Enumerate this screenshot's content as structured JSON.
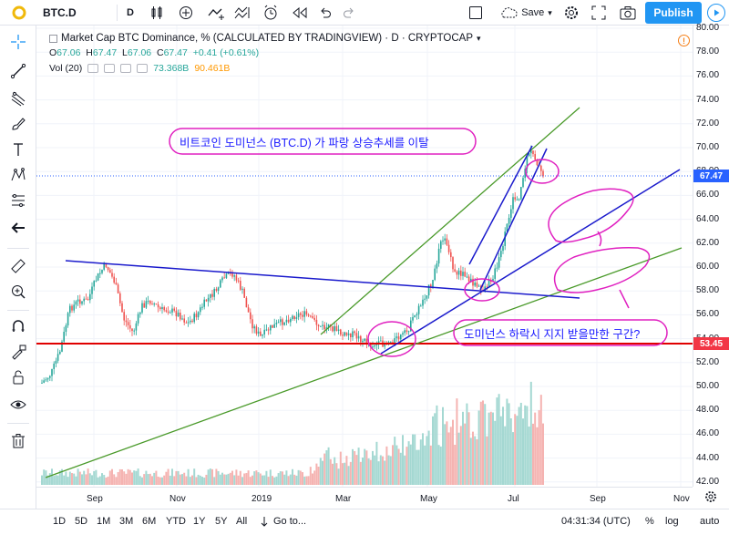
{
  "toolbar": {
    "symbol": "BTC.D",
    "interval": "D",
    "save_label": "Save",
    "publish_label": "Publish"
  },
  "legend": {
    "title": "Market Cap BTC Dominance, % (CALCULATED BY TRADINGVIEW) · D · CRYPTOCAP",
    "open_label": "O",
    "open": "67.06",
    "high_label": "H",
    "high": "67.47",
    "low_label": "L",
    "low": "67.06",
    "close_label": "C",
    "close": "67.47",
    "change": "+0.41 (+0.61%)",
    "vol_label": "Vol (20)",
    "vol_value": "73.368B",
    "vol_ma": "90.461B"
  },
  "annotations": {
    "top": "비트코인 도미넌스 (BTC.D) 가 파랑 상승추세를 이탈",
    "bottom": "도미넌스 하락시 지지 받을만한 구간?"
  },
  "price_axis": {
    "ticks": [
      "80.00",
      "78.00",
      "76.00",
      "74.00",
      "72.00",
      "70.00",
      "68.00",
      "66.00",
      "64.00",
      "62.00",
      "60.00",
      "58.00",
      "56.00",
      "54.00",
      "52.00",
      "50.00",
      "48.00",
      "46.00",
      "44.00",
      "42.00"
    ],
    "current_price": "67.47",
    "current_color": "#2962ff",
    "support_price": "53.45",
    "support_color": "#f23645"
  },
  "time_axis": {
    "ticks": [
      "Sep",
      "Nov",
      "2019",
      "Mar",
      "May",
      "Jul",
      "Sep",
      "Nov"
    ]
  },
  "bottom_bar": {
    "timeframes": [
      "1D",
      "5D",
      "1M",
      "3M",
      "6M",
      "YTD",
      "1Y",
      "5Y",
      "All"
    ],
    "goto": "Go to...",
    "clock": "04:31:34 (UTC)",
    "percent": "%",
    "log": "log",
    "auto": "auto"
  },
  "colors": {
    "candle_up": "#26a69a",
    "candle_down": "#ef5350",
    "trend_blue": "#1a1acc",
    "trend_green": "#4a9a2a",
    "support_red": "#e00000",
    "circle_magenta": "#e020c0"
  }
}
